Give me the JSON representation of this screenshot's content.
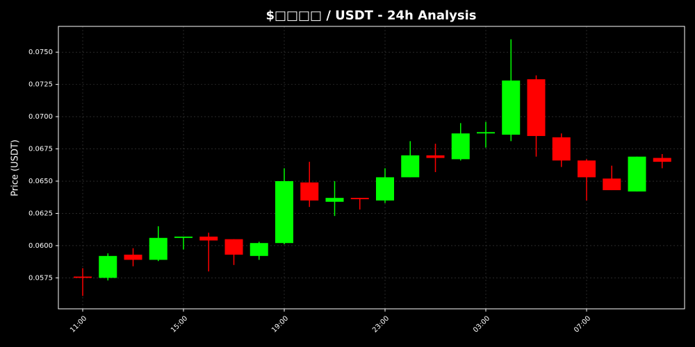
{
  "chart_data": {
    "type": "candlestick",
    "title": "$□□□□ / USDT - 24h Analysis",
    "y_label": "Price (USDT)",
    "categories": [
      "11:00",
      null,
      null,
      null,
      "15:00",
      null,
      null,
      null,
      "19:00",
      null,
      null,
      null,
      "23:00",
      null,
      null,
      null,
      "03:00",
      null,
      null,
      null,
      "07:00",
      null,
      null,
      null
    ],
    "open": [
      0.0576,
      0.0575,
      0.0593,
      0.0589,
      0.0606,
      0.0607,
      0.0605,
      0.0592,
      0.0602,
      0.0649,
      0.0634,
      0.0637,
      0.0635,
      0.0653,
      0.067,
      0.0667,
      0.0687,
      0.0686,
      0.0729,
      0.0684,
      0.0666,
      0.0652,
      0.0642,
      0.0668
    ],
    "high": [
      0.05825,
      0.0594,
      0.0598,
      0.0615,
      0.0607,
      0.061,
      0.0605,
      0.0603,
      0.066,
      0.0665,
      0.065,
      0.0637,
      0.066,
      0.0681,
      0.0679,
      0.0695,
      0.0696,
      0.076,
      0.0732,
      0.0687,
      0.0667,
      0.0662,
      0.0669,
      0.0671
    ],
    "low": [
      0.0561,
      0.0573,
      0.0584,
      0.0588,
      0.0597,
      0.058,
      0.0585,
      0.0589,
      0.0601,
      0.063,
      0.0623,
      0.0628,
      0.0633,
      0.0653,
      0.0657,
      0.0666,
      0.0676,
      0.0681,
      0.0669,
      0.0661,
      0.0635,
      0.0643,
      0.0642,
      0.066
    ],
    "close": [
      0.0575,
      0.0592,
      0.0589,
      0.0606,
      0.0607,
      0.0604,
      0.0593,
      0.0602,
      0.065,
      0.0635,
      0.0637,
      0.0636,
      0.0653,
      0.067,
      0.0668,
      0.0687,
      0.0688,
      0.0728,
      0.0685,
      0.0666,
      0.0653,
      0.0643,
      0.0669,
      0.0665
    ],
    "up_color": "#00ff00",
    "down_color": "#ff0000",
    "ylim": [
      0.0551,
      0.077
    ],
    "yticks": [
      0.0575,
      {
        "value": 0.06,
        "label": "0.0600"
      },
      0.0625,
      {
        "value": 0.065,
        "label": "0.0650"
      },
      0.0675,
      {
        "value": 0.07,
        "label": "0.0700"
      },
      0.0725,
      {
        "value": 0.075,
        "label": "0.0750"
      }
    ],
    "grid": true
  }
}
